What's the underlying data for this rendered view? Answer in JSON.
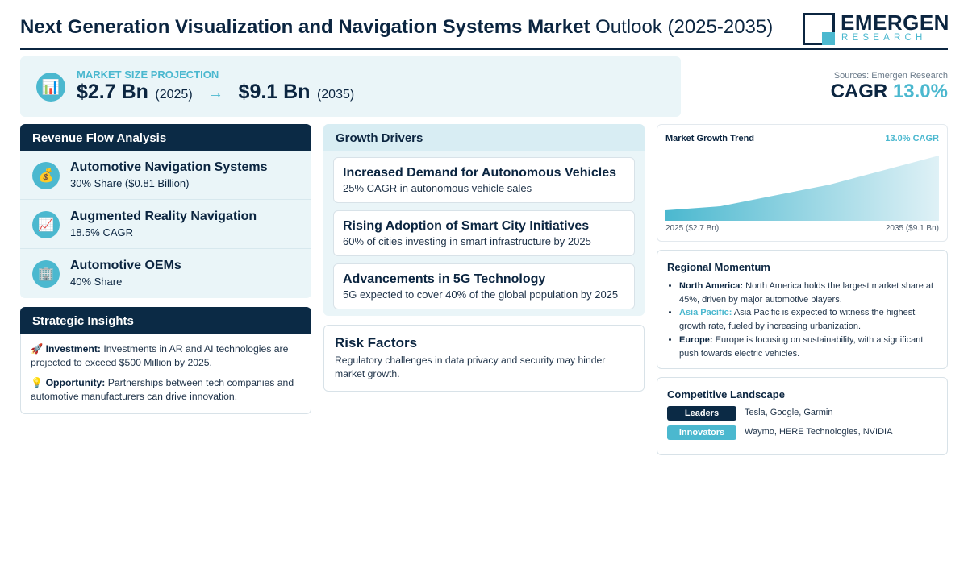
{
  "header": {
    "title_bold": "Next Generation Visualization and Navigation Systems Market",
    "title_rest": "Outlook (2025-2035)",
    "logo_main": "EMERGEN",
    "logo_sub": "RESEARCH"
  },
  "market": {
    "label": "MARKET SIZE PROJECTION",
    "icon": "bar-chart-icon",
    "start_value": "$2.7 Bn",
    "start_year": "(2025)",
    "arrow": "→",
    "end_value": "$9.1 Bn",
    "end_year": "(2035)"
  },
  "cagr": {
    "source": "Sources: Emergen Research",
    "label": "CAGR",
    "value": "13.0%"
  },
  "revenue": {
    "title": "Revenue Flow Analysis",
    "items": [
      {
        "icon": "money-bag-icon",
        "title": "Automotive Navigation Systems",
        "sub": "30% Share ($0.81 Billion)"
      },
      {
        "icon": "trend-chart-icon",
        "title": "Augmented Reality Navigation",
        "sub": "18.5% CAGR"
      },
      {
        "icon": "building-icon",
        "title": "Automotive OEMs",
        "sub": "40% Share"
      }
    ]
  },
  "strategic": {
    "title": "Strategic Insights",
    "items": [
      {
        "icon": "rocket-icon",
        "label": "Investment:",
        "text": "Investments in AR and AI technologies are projected to exceed $500 Million by 2025."
      },
      {
        "icon": "lightbulb-icon",
        "label": "Opportunity:",
        "text": "Partnerships between tech companies and automotive manufacturers can drive innovation."
      }
    ]
  },
  "growth": {
    "title": "Growth Drivers",
    "items": [
      {
        "title": "Increased Demand for Autonomous Vehicles",
        "sub": "25% CAGR in autonomous vehicle sales"
      },
      {
        "title": "Rising Adoption of Smart City Initiatives",
        "sub": "60% of cities investing in smart infrastructure by 2025"
      },
      {
        "title": "Advancements in 5G Technology",
        "sub": "5G expected to cover 40% of the global population by 2025"
      }
    ]
  },
  "risk": {
    "title": "Risk Factors",
    "text": "Regulatory challenges in data privacy and security may hinder market growth."
  },
  "trend": {
    "title": "Market Growth Trend",
    "cagr": "13.0% CAGR",
    "start_label": "2025 ($2.7 Bn)",
    "end_label": "2035 ($9.1 Bn)",
    "colors": {
      "fill_top": "#4bb8cf",
      "fill_bottom": "#dff1f6"
    }
  },
  "regional": {
    "title": "Regional Momentum",
    "items": [
      {
        "region": "North America:",
        "text": "North America holds the largest market share at 45%, driven by major automotive players.",
        "accent": false
      },
      {
        "region": "Asia Pacific:",
        "text": "Asia Pacific is expected to witness the highest growth rate, fueled by increasing urbanization.",
        "accent": true
      },
      {
        "region": "Europe:",
        "text": "Europe is focusing on sustainability, with a significant push towards electric vehicles.",
        "accent": false
      }
    ]
  },
  "competitive": {
    "title": "Competitive Landscape",
    "rows": [
      {
        "label": "Leaders",
        "names": "Tesla, Google, Garmin"
      },
      {
        "label": "Innovators",
        "names": "Waymo, HERE Technologies, NVIDIA"
      }
    ]
  }
}
